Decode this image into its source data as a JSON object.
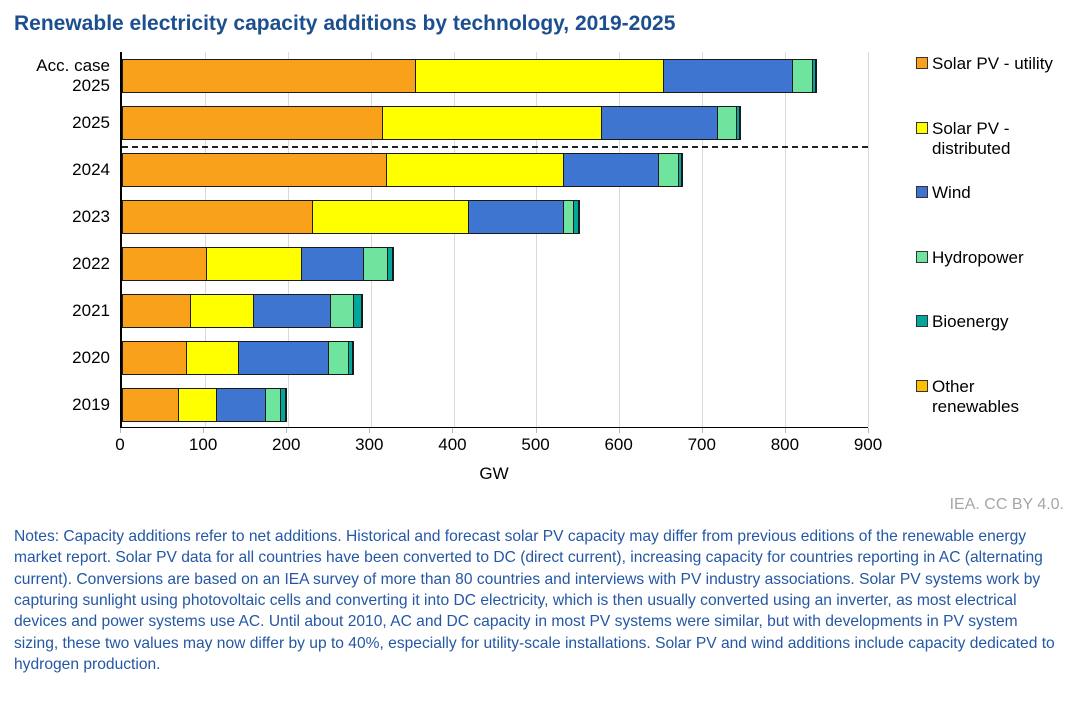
{
  "title": "Renewable electricity capacity additions by technology, 2019-2025",
  "caption": "IEA. CC BY 4.0.",
  "notes": "Notes: Capacity additions refer to net additions. Historical and forecast solar PV capacity may differ from previous editions of the renewable energy market report. Solar PV data for all countries have been converted to DC (direct current), increasing capacity for countries reporting in AC (alternating current). Conversions are based on an IEA survey of more than 80 countries and interviews with PV industry associations. Solar PV systems work by capturing sunlight using photovoltaic cells and converting it into DC electricity, which is then usually converted using an inverter, as most electrical devices and power systems use AC. Until about 2010, AC and DC capacity in most PV systems were similar, but with developments in PV system sizing, these two values may now differ by up to 40%, especially for utility-scale installations. Solar PV and wind additions include capacity dedicated to hydrogen production.",
  "colors": {
    "title": "#1b4f8f",
    "notes": "#2457a5",
    "caption": "#a6a6a6",
    "gridline": "#d9d9d9",
    "axis": "#000000"
  },
  "chart_data": {
    "type": "bar",
    "orientation": "horizontal",
    "stacked": true,
    "title": "Renewable electricity capacity additions by technology, 2019-2025",
    "categories": [
      "Acc. case 2025",
      "2025",
      "2024",
      "2023",
      "2022",
      "2021",
      "2020",
      "2019"
    ],
    "series": [
      {
        "name": "Solar PV - utility",
        "color": "#f9a11b",
        "values": [
          355,
          315,
          320,
          230,
          102,
          83,
          78,
          69
        ]
      },
      {
        "name": "Solar PV - distributed",
        "color": "#ffff00",
        "values": [
          300,
          265,
          215,
          190,
          116,
          77,
          64,
          47
        ]
      },
      {
        "name": "Wind",
        "color": "#3e75d1",
        "values": [
          157,
          142,
          115,
          116,
          76,
          95,
          110,
          60
        ]
      },
      {
        "name": "Hydropower",
        "color": "#6ee49f",
        "values": [
          25,
          24,
          26,
          13,
          30,
          28,
          25,
          19
        ]
      },
      {
        "name": "Bioenergy",
        "color": "#00a79b",
        "values": [
          5,
          5,
          4,
          7,
          8,
          11,
          7,
          8
        ]
      },
      {
        "name": "Other renewables",
        "color": "#ffc000",
        "values": [
          2,
          2,
          1,
          1,
          2,
          2,
          2,
          2
        ]
      }
    ],
    "xlabel": "GW",
    "xlim": [
      0,
      900
    ],
    "xticks": [
      0,
      100,
      200,
      300,
      400,
      500,
      600,
      700,
      800,
      900
    ],
    "grid": true,
    "legend_position": "right",
    "dashed_separator_after_category": "2025"
  }
}
